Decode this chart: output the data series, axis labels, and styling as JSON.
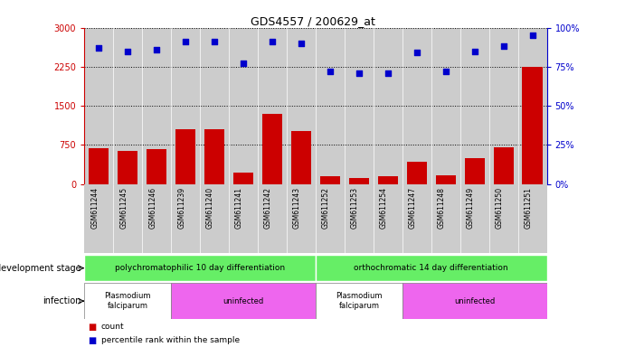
{
  "title": "GDS4557 / 200629_at",
  "samples": [
    "GSM611244",
    "GSM611245",
    "GSM611246",
    "GSM611239",
    "GSM611240",
    "GSM611241",
    "GSM611242",
    "GSM611243",
    "GSM611252",
    "GSM611253",
    "GSM611254",
    "GSM611247",
    "GSM611248",
    "GSM611249",
    "GSM611250",
    "GSM611251"
  ],
  "counts": [
    680,
    640,
    670,
    1050,
    1050,
    220,
    1350,
    1020,
    150,
    120,
    150,
    430,
    170,
    500,
    700,
    2250
  ],
  "percentile": [
    87,
    85,
    86,
    91,
    91,
    77,
    91,
    90,
    72,
    71,
    71,
    84,
    72,
    85,
    88,
    95
  ],
  "ylim_left": [
    0,
    3000
  ],
  "ylim_right": [
    0,
    100
  ],
  "yticks_left": [
    0,
    750,
    1500,
    2250,
    3000
  ],
  "yticks_right": [
    0,
    25,
    50,
    75,
    100
  ],
  "bar_color": "#cc0000",
  "dot_color": "#0000cc",
  "dev_stage_label": "development stage",
  "infection_label": "infection",
  "legend_count_label": "count",
  "legend_pct_label": "percentile rank within the sample",
  "axis_bg_color": "#cccccc",
  "green_color": "#66ee66",
  "white_color": "#ffffff",
  "magenta_color": "#ee66ee",
  "left_tick_color": "#cc0000",
  "right_tick_color": "#0000cc",
  "dev_groups": [
    {
      "label": "polychromatophilic 10 day differentiation",
      "s": 0,
      "e": 7
    },
    {
      "label": "orthochromatic 14 day differentiation",
      "s": 8,
      "e": 15
    }
  ],
  "inf_groups": [
    {
      "label": "Plasmodium\nfalciparum",
      "s": 0,
      "e": 2,
      "white": true
    },
    {
      "label": "uninfected",
      "s": 3,
      "e": 7,
      "white": false
    },
    {
      "label": "Plasmodium\nfalciparum",
      "s": 8,
      "e": 10,
      "white": true
    },
    {
      "label": "uninfected",
      "s": 11,
      "e": 15,
      "white": false
    }
  ]
}
